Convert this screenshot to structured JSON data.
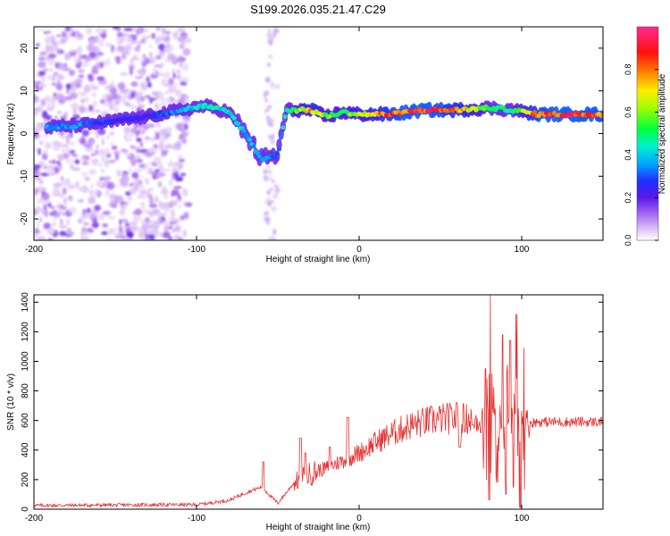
{
  "figure_title": "S199.2026.035.21.47.C29",
  "chart_data": [
    {
      "type": "heatmap",
      "title": "S199.2026.035.21.47.C29",
      "xlabel": "Height of straight line (km)",
      "ylabel": "Frequency (Hz)",
      "xlim": [
        -200,
        150
      ],
      "ylim": [
        -25,
        25
      ],
      "x_ticks": [
        -200,
        -100,
        0,
        100
      ],
      "y_ticks": [
        -20,
        -10,
        0,
        10,
        20
      ],
      "grid": false,
      "colorbar": {
        "label": "Normalized spectral amplitude",
        "range": [
          0,
          1
        ],
        "ticks": [
          "0.0",
          "0.2",
          "0.4",
          "0.6",
          "0.8"
        ],
        "colors": [
          "#ffffff",
          "#d8b8f0",
          "#7a2be0",
          "#2020ff",
          "#00c0ff",
          "#00ff80",
          "#60ff00",
          "#ffff00",
          "#ff8000",
          "#ff0000",
          "#ff2a8a"
        ]
      },
      "ridge": {
        "description_points": [
          {
            "x": -190,
            "freq": 1.5,
            "amp": 0.35
          },
          {
            "x": -170,
            "freq": 2.0,
            "amp": 0.35
          },
          {
            "x": -150,
            "freq": 3.0,
            "amp": 0.25
          },
          {
            "x": -130,
            "freq": 4.0,
            "amp": 0.25
          },
          {
            "x": -110,
            "freq": 5.5,
            "amp": 0.35
          },
          {
            "x": -95,
            "freq": 6.5,
            "amp": 0.45
          },
          {
            "x": -80,
            "freq": 5.0,
            "amp": 0.45
          },
          {
            "x": -70,
            "freq": 0.0,
            "amp": 0.4
          },
          {
            "x": -60,
            "freq": -6.0,
            "amp": 0.35
          },
          {
            "x": -50,
            "freq": -5.0,
            "amp": 0.3
          },
          {
            "x": -45,
            "freq": 5.5,
            "amp": 0.45
          },
          {
            "x": -30,
            "freq": 5.5,
            "amp": 0.75
          },
          {
            "x": -20,
            "freq": 4.0,
            "amp": 0.6
          },
          {
            "x": -10,
            "freq": 5.0,
            "amp": 0.55
          },
          {
            "x": 0,
            "freq": 4.5,
            "amp": 0.65
          },
          {
            "x": 20,
            "freq": 4.5,
            "amp": 0.85
          },
          {
            "x": 40,
            "freq": 5.5,
            "amp": 0.9
          },
          {
            "x": 60,
            "freq": 5.5,
            "amp": 0.8
          },
          {
            "x": 80,
            "freq": 6.0,
            "amp": 0.5
          },
          {
            "x": 95,
            "freq": 5.5,
            "amp": 0.5
          },
          {
            "x": 110,
            "freq": 4.5,
            "amp": 0.85
          },
          {
            "x": 130,
            "freq": 4.5,
            "amp": 0.9
          },
          {
            "x": 150,
            "freq": 4.5,
            "amp": 0.85
          }
        ]
      }
    },
    {
      "type": "line",
      "title": "",
      "xlabel": "Height of straight line (km)",
      "ylabel": "SNR (10 * v/v)",
      "xlim": [
        -200,
        150
      ],
      "ylim": [
        0,
        1450
      ],
      "x_ticks": [
        -200,
        -100,
        0,
        100
      ],
      "y_ticks": [
        0,
        200,
        400,
        600,
        800,
        1000,
        1200,
        1400
      ],
      "grid": false,
      "series": [
        {
          "name": "SNR",
          "color": "#e83030",
          "baseline": {
            "x": [
              -200,
              -120,
              -100,
              -80,
              -70,
              -60,
              -50,
              -40,
              -30,
              -20,
              -10,
              0,
              10,
              20,
              30,
              40,
              50,
              60,
              70,
              80,
              90,
              100,
              110,
              120,
              130,
              150
            ],
            "y": [
              25,
              30,
              30,
              60,
              110,
              150,
              40,
              180,
              240,
              280,
              330,
              380,
              450,
              510,
              560,
              590,
              610,
              615,
              610,
              600,
              590,
              580,
              590,
              590,
              590,
              590
            ]
          },
          "spikes": [
            {
              "x": -59,
              "y": 320
            },
            {
              "x": -36,
              "y": 480
            },
            {
              "x": -33,
              "y": 380
            },
            {
              "x": -18,
              "y": 420
            },
            {
              "x": -7,
              "y": 620
            },
            {
              "x": 60,
              "y": 720
            },
            {
              "x": 62,
              "y": 420
            },
            {
              "x": 70,
              "y": 570
            },
            {
              "x": 78,
              "y": 950
            },
            {
              "x": 80,
              "y": 60
            },
            {
              "x": 81,
              "y": 1450
            },
            {
              "x": 85,
              "y": 180
            },
            {
              "x": 88,
              "y": 1180
            },
            {
              "x": 90,
              "y": 100
            },
            {
              "x": 93,
              "y": 1140
            },
            {
              "x": 95,
              "y": 150
            },
            {
              "x": 97,
              "y": 1320
            },
            {
              "x": 99,
              "y": 10
            },
            {
              "x": 101,
              "y": 1090
            }
          ]
        }
      ]
    }
  ]
}
